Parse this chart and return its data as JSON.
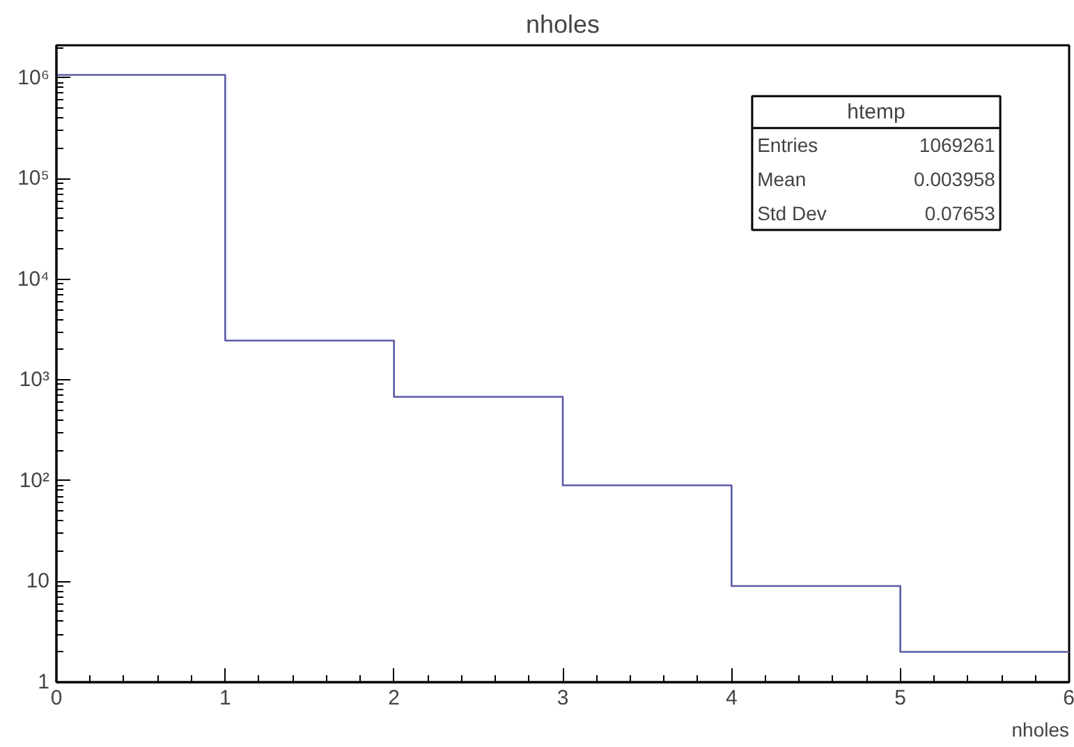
{
  "chart_data": {
    "type": "histogram",
    "title": "nholes",
    "xlabel": "nholes",
    "bins": [
      0,
      1,
      2,
      3,
      4,
      5,
      6
    ],
    "values": [
      1066000,
      2460,
      680,
      90,
      9,
      2
    ],
    "color": "#5b5ba8",
    "log": "y",
    "xlim": [
      0,
      6
    ],
    "ylim": [
      1,
      2100000
    ],
    "xticks": [
      0,
      1,
      2,
      3,
      4,
      5,
      6
    ],
    "yticks": [
      {
        "value": 1,
        "label": "1"
      },
      {
        "value": 10,
        "label": "10"
      },
      {
        "value": 100,
        "label": "10²"
      },
      {
        "value": 1000,
        "label": "10³"
      },
      {
        "value": 10000,
        "label": "10⁴"
      },
      {
        "value": 100000,
        "label": "10⁵"
      },
      {
        "value": 1000000,
        "label": "10⁶"
      }
    ],
    "annotations": [
      "htemp",
      "Entries",
      "1069261",
      "Mean",
      "0.003958",
      "Std Dev",
      "0.07653"
    ],
    "grid": false
  }
}
